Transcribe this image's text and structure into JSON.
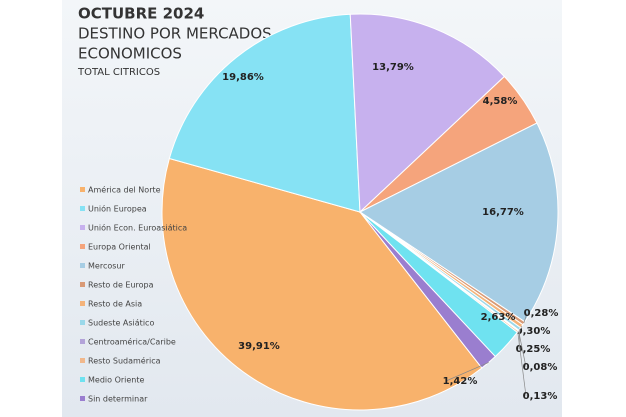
{
  "chart_data": {
    "type": "pie",
    "title": "OCTUBRE 2024",
    "subtitle": [
      "DESTINO POR MERCADOS",
      "ECONOMICOS"
    ],
    "caption": "TOTAL CITRICOS",
    "categories": [
      "América del Norte",
      "Unión Europea",
      "Unión Econ. Euroasiática",
      "Europa Oriental",
      "Mercosur",
      "Resto de Europa",
      "Resto de Asia",
      "Sudeste Asiático",
      "Centroamérica/Caribe",
      "Resto Sudamérica",
      "Medio Oriente",
      "Sin determinar"
    ],
    "values": [
      39.91,
      19.86,
      13.79,
      4.58,
      16.77,
      0.28,
      0.3,
      0.25,
      0.08,
      0.13,
      2.63,
      1.42
    ],
    "value_labels": [
      "39,91%",
      "19,86%",
      "13,79%",
      "4,58%",
      "16,77%",
      "0,28%",
      "0,30%",
      "0,25%",
      "0,08%",
      "0,13%",
      "2,63%",
      "1,42%"
    ],
    "colors": [
      "#f8b26c",
      "#86e2f4",
      "#c7b1ee",
      "#f5a47c",
      "#a6cde4",
      "#d99a76",
      "#f4b37a",
      "#9ad8ea",
      "#b3a3d9",
      "#f1b88c",
      "#6fe2f0",
      "#9a7ecf"
    ],
    "legend": "left"
  }
}
